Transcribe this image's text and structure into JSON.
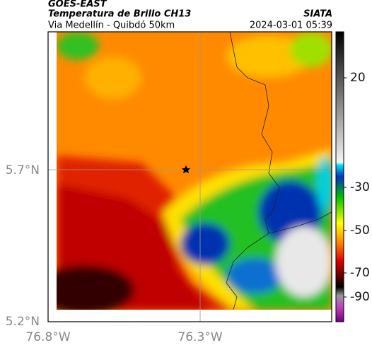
{
  "header": {
    "title": "GOES-EAST",
    "subtitle": "Temperatura de Brillo CH13",
    "source": "SIATA",
    "route": "Via Medellín - Quibdó 50km",
    "timestamp": "2024-03-01 05:39"
  },
  "axes": {
    "lat_labels": [
      "5.7°N",
      "5.2°N"
    ],
    "lon_labels": [
      "76.8°W",
      "76.3°W"
    ]
  },
  "colorbar": {
    "ticks": [
      20,
      -30,
      -50,
      -70,
      -90
    ]
  }
}
